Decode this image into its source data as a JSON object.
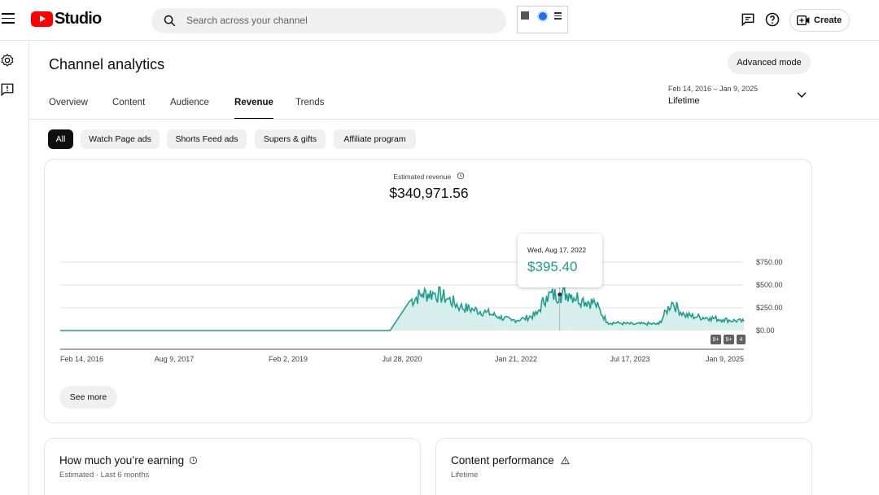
{
  "header": {
    "logo_text": "Studio",
    "search_placeholder": "Search across your channel",
    "create_label": "Create"
  },
  "page": {
    "title": "Channel analytics",
    "advanced_mode_label": "Advanced mode",
    "date_range": "Feb 14, 2016 – Jan 9, 2025",
    "date_preset": "Lifetime"
  },
  "tabs": [
    "Overview",
    "Content",
    "Audience",
    "Revenue",
    "Trends"
  ],
  "active_tab": "Revenue",
  "chips": [
    "All",
    "Watch Page ads",
    "Shorts Feed ads",
    "Supers & gifts",
    "Affiliate program"
  ],
  "active_chip": "All",
  "revenue": {
    "metric_label": "Estimated revenue",
    "metric_value": "$340,971.56",
    "see_more_label": "See more",
    "tooltip_date": "Wed, Aug 17, 2022",
    "tooltip_value": "$395.40",
    "badges": [
      "9+",
      "9+",
      "4"
    ]
  },
  "chart_data": {
    "type": "area",
    "x_tick_labels": [
      "Feb 14, 2016",
      "Aug 9, 2017",
      "Feb 2, 2019",
      "Jul 28, 2020",
      "Jan 21, 2022",
      "Jul 17, 2023",
      "Jan 9, 2025"
    ],
    "y_tick_labels": [
      "$0.00",
      "$250.00",
      "$500.00",
      "$750.00"
    ],
    "ylim": [
      0,
      750
    ],
    "series": [
      {
        "x": [
          "2016-02-14",
          "2020-06-01",
          "2020-09-01",
          "2020-11-01",
          "2021-01-01",
          "2021-03-01",
          "2021-05-01",
          "2021-07-01",
          "2021-09-01",
          "2021-11-01",
          "2022-01-01",
          "2022-03-01",
          "2022-05-01",
          "2022-06-15",
          "2022-08-17",
          "2022-10-01",
          "2022-12-01",
          "2023-02-01",
          "2023-04-01",
          "2023-06-01",
          "2023-08-01",
          "2023-10-01",
          "2023-12-01",
          "2024-02-01",
          "2024-04-01",
          "2024-06-01",
          "2024-08-01",
          "2024-10-01",
          "2025-01-09"
        ],
        "values": [
          0,
          0,
          320,
          400,
          410,
          350,
          260,
          230,
          200,
          150,
          110,
          130,
          180,
          380,
          395,
          410,
          340,
          300,
          90,
          80,
          70,
          75,
          70,
          310,
          170,
          150,
          140,
          120,
          100
        ]
      }
    ],
    "color": "#1f9e8f",
    "fill_color": "#d7efec",
    "grid": true
  },
  "earning_card": {
    "title": "How much you’re earning",
    "subtitle": "Estimated · Last 6 months"
  },
  "performance_card": {
    "title": "Content performance",
    "subtitle": "Lifetime"
  }
}
